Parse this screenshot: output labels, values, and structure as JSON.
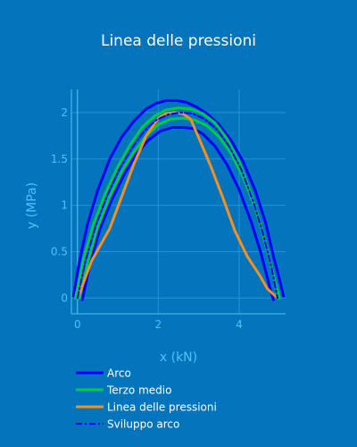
{
  "chart_data": {
    "type": "line",
    "title": "Linea delle pressioni",
    "xlabel": "x (kN)",
    "ylabel": "y (MPa)",
    "xlim": [
      -0.15,
      5.15
    ],
    "ylim": [
      -0.17,
      2.25
    ],
    "x_ticks": [
      0,
      2,
      4
    ],
    "x_tick_labels": [
      "0",
      "2",
      "4"
    ],
    "y_ticks": [
      0,
      0.5,
      1,
      1.5,
      2
    ],
    "y_tick_labels": [
      "0",
      "0.5",
      "1",
      "1.5",
      "2"
    ],
    "grid": true,
    "legend_position": "bottom-left",
    "series": [
      {
        "name": "Arco",
        "color": "#0000ff",
        "dash": "solid",
        "segments": [
          {
            "x": [
              -0.1,
              0.05,
              0.25,
              0.5,
              0.8,
              1.1,
              1.4,
              1.7,
              1.95,
              2.2,
              2.45,
              2.7,
              2.95,
              3.2,
              3.5,
              3.8,
              4.1,
              4.4,
              4.65,
              4.85,
              5.0,
              5.1
            ],
            "y": [
              0.02,
              0.4,
              0.8,
              1.16,
              1.5,
              1.74,
              1.91,
              2.04,
              2.1,
              2.13,
              2.13,
              2.11,
              2.06,
              1.99,
              1.87,
              1.7,
              1.47,
              1.16,
              0.82,
              0.45,
              0.2,
              0.02
            ]
          },
          {
            "x": [
              0.12,
              0.3,
              0.55,
              0.85,
              1.15,
              1.45,
              1.75,
              2.05,
              2.35,
              2.6,
              2.85,
              3.1,
              3.4,
              3.7,
              4.0,
              4.3,
              4.55,
              4.75,
              4.85
            ],
            "y": [
              -0.02,
              0.35,
              0.74,
              1.06,
              1.33,
              1.55,
              1.7,
              1.8,
              1.84,
              1.84,
              1.83,
              1.77,
              1.64,
              1.44,
              1.17,
              0.82,
              0.47,
              0.13,
              -0.02
            ]
          }
        ]
      },
      {
        "name": "Terzo medio",
        "color": "#00cc44",
        "dash": "solid",
        "segments": [
          {
            "x": [
              -0.05,
              0.15,
              0.4,
              0.7,
              1.0,
              1.3,
              1.6,
              1.9,
              2.2,
              2.5,
              2.8,
              3.1,
              3.4,
              3.7,
              4.0,
              4.3,
              4.55,
              4.75,
              4.9,
              5.0
            ],
            "y": [
              0.0,
              0.42,
              0.8,
              1.14,
              1.42,
              1.65,
              1.84,
              1.96,
              2.03,
              2.05,
              2.04,
              1.99,
              1.89,
              1.72,
              1.47,
              1.12,
              0.76,
              0.42,
              0.16,
              0.0
            ]
          },
          {
            "x": [
              0.05,
              0.25,
              0.5,
              0.8,
              1.1,
              1.4,
              1.7,
              2.0,
              2.3,
              2.6,
              2.9,
              3.2,
              3.5,
              3.8,
              4.1,
              4.4,
              4.65,
              4.85,
              4.95
            ],
            "y": [
              0.0,
              0.38,
              0.76,
              1.1,
              1.37,
              1.58,
              1.75,
              1.87,
              1.93,
              1.94,
              1.92,
              1.86,
              1.74,
              1.56,
              1.3,
              0.97,
              0.6,
              0.24,
              0.0
            ]
          }
        ]
      },
      {
        "name": "Linea delle pressioni",
        "color": "#f5901e",
        "dash": "solid",
        "segments": [
          {
            "x": [
              0.05,
              0.35,
              0.8,
              1.1,
              1.4,
              1.7,
              2.0,
              2.2,
              2.4,
              2.6,
              2.8,
              3.0,
              3.3,
              3.6,
              3.9,
              4.2,
              4.5,
              4.7,
              4.9
            ],
            "y": [
              0.05,
              0.4,
              0.75,
              1.1,
              1.45,
              1.75,
              1.94,
              1.99,
              2.0,
              1.99,
              1.93,
              1.73,
              1.42,
              1.08,
              0.72,
              0.45,
              0.25,
              0.1,
              0.02
            ]
          }
        ]
      },
      {
        "name": "Sviluppo arco",
        "color": "#0000ff",
        "dash": "dashdot",
        "segments": [
          {
            "x": [
              0.0,
              0.2,
              0.45,
              0.75,
              1.05,
              1.35,
              1.65,
              1.95,
              2.25,
              2.55,
              2.85,
              3.15,
              3.45,
              3.75,
              4.05,
              4.35,
              4.6,
              4.8,
              4.95
            ],
            "y": [
              0.0,
              0.4,
              0.78,
              1.12,
              1.4,
              1.62,
              1.8,
              1.92,
              1.98,
              2.0,
              1.99,
              1.93,
              1.82,
              1.64,
              1.39,
              1.04,
              0.68,
              0.33,
              0.0
            ]
          }
        ]
      }
    ]
  }
}
